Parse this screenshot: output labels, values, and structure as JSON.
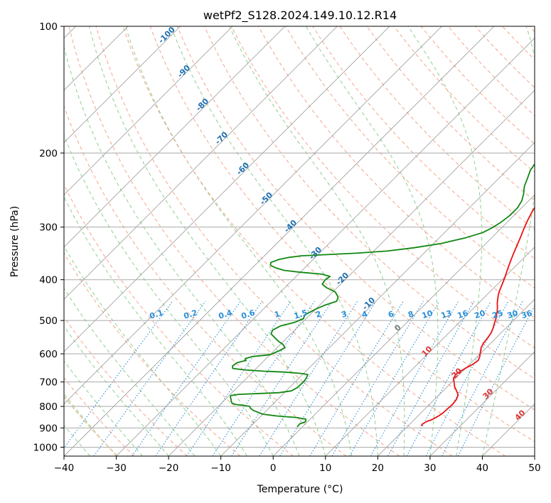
{
  "colors": {
    "temperature": "#ee1111",
    "dewpoint": "#118811",
    "isotherm": "#999999",
    "isobar": "#aaaaaa",
    "dry_adiabat": "#f4a58a",
    "moist_adiabat": "#8fcf8f",
    "mixing_ratio": "#2a8fd8",
    "dry_label": "#1f6fb0",
    "hot_label": "#dd3333",
    "zero_label": "#808080",
    "curve_accent": "#e8cfa8"
  },
  "chart_data": {
    "type": "line",
    "title": "wetPf2_S128.2024.149.10.12.R14",
    "xlabel": "Temperature (°C)",
    "ylabel": "Pressure (hPa)",
    "xlim": [
      -40,
      50
    ],
    "ylim": [
      1050,
      100
    ],
    "y_scale": "log",
    "x_ticks": [
      "−40",
      "−30",
      "−20",
      "−10",
      "0",
      "10",
      "20",
      "30",
      "40",
      "50"
    ],
    "y_ticks": [
      "100",
      "200",
      "300",
      "400",
      "500",
      "600",
      "700",
      "800",
      "900",
      "1000"
    ],
    "grid": true,
    "series": [
      {
        "role": "temperature",
        "points": [
          [
            22.5,
            890
          ],
          [
            22.4,
            880
          ],
          [
            22.8,
            868
          ],
          [
            23.4,
            860
          ],
          [
            23.9,
            845
          ],
          [
            24.2,
            830
          ],
          [
            24.3,
            810
          ],
          [
            24.4,
            790
          ],
          [
            24.2,
            770
          ],
          [
            23.7,
            752
          ],
          [
            22.6,
            735
          ],
          [
            21.4,
            718
          ],
          [
            20.4,
            700
          ],
          [
            19.6,
            686
          ],
          [
            19.3,
            672
          ],
          [
            19.6,
            660
          ],
          [
            20.0,
            648
          ],
          [
            20.6,
            636
          ],
          [
            20.9,
            622
          ],
          [
            20.5,
            610
          ],
          [
            19.8,
            596
          ],
          [
            19.0,
            580
          ],
          [
            18.6,
            566
          ],
          [
            18.4,
            550
          ],
          [
            18.1,
            535
          ],
          [
            17.5,
            520
          ],
          [
            16.9,
            508
          ],
          [
            16.3,
            495
          ],
          [
            15.7,
            485
          ],
          [
            15.1,
            475
          ],
          [
            14.4,
            465
          ],
          [
            13.6,
            455
          ],
          [
            12.9,
            445
          ],
          [
            12.3,
            436
          ],
          [
            11.8,
            428
          ],
          [
            11.4,
            420
          ],
          [
            10.9,
            410
          ],
          [
            10.1,
            395
          ],
          [
            9.2,
            380
          ],
          [
            8.3,
            365
          ],
          [
            7.4,
            350
          ],
          [
            6.5,
            335
          ],
          [
            5.6,
            320
          ],
          [
            4.6,
            305
          ],
          [
            3.6,
            290
          ],
          [
            2.7,
            275
          ],
          [
            2.0,
            260
          ],
          [
            1.5,
            245
          ],
          [
            1.1,
            230
          ],
          [
            0.8,
            215
          ],
          [
            0.6,
            200
          ],
          [
            0.8,
            190
          ],
          [
            1.3,
            180
          ],
          [
            2.0,
            170
          ],
          [
            2.7,
            160
          ],
          [
            3.4,
            153
          ],
          [
            4.3,
            147
          ],
          [
            5.7,
            141
          ],
          [
            7.0,
            136
          ],
          [
            8.6,
            130
          ],
          [
            9.8,
            124
          ],
          [
            10.7,
            118
          ],
          [
            11.6,
            112
          ],
          [
            12.7,
            106
          ],
          [
            14.6,
            100
          ]
        ]
      },
      {
        "role": "dewpoint",
        "points": [
          [
            -1.0,
            895
          ],
          [
            -1.1,
            880
          ],
          [
            -0.4,
            870
          ],
          [
            -0.8,
            858
          ],
          [
            -3.0,
            850
          ],
          [
            -7.0,
            843
          ],
          [
            -10.0,
            835
          ],
          [
            -12.5,
            818
          ],
          [
            -13.5,
            808
          ],
          [
            -14.0,
            800
          ],
          [
            -15.5,
            795
          ],
          [
            -17.0,
            792
          ],
          [
            -18.0,
            786
          ],
          [
            -18.5,
            778
          ],
          [
            -19.0,
            768
          ],
          [
            -19.5,
            760
          ],
          [
            -19.7,
            754
          ],
          [
            -18.5,
            749
          ],
          [
            -14.0,
            745
          ],
          [
            -11.0,
            742
          ],
          [
            -9.0,
            735
          ],
          [
            -8.5,
            722
          ],
          [
            -8.4,
            700
          ],
          [
            -8.6,
            685
          ],
          [
            -9.0,
            672
          ],
          [
            -10.5,
            668
          ],
          [
            -14.0,
            663
          ],
          [
            -18.0,
            660
          ],
          [
            -22.0,
            655
          ],
          [
            -24.5,
            650
          ],
          [
            -25.0,
            642
          ],
          [
            -24.8,
            630
          ],
          [
            -23.5,
            622
          ],
          [
            -24.0,
            616
          ],
          [
            -23.0,
            609
          ],
          [
            -20.0,
            603
          ],
          [
            -19.0,
            590
          ],
          [
            -18.5,
            580
          ],
          [
            -19.5,
            570
          ],
          [
            -21.0,
            560
          ],
          [
            -22.5,
            548
          ],
          [
            -23.8,
            538
          ],
          [
            -24.2,
            527
          ],
          [
            -23.5,
            515
          ],
          [
            -21.5,
            505
          ],
          [
            -20.5,
            495
          ],
          [
            -21.0,
            485
          ],
          [
            -20.0,
            470
          ],
          [
            -19.0,
            460
          ],
          [
            -17.5,
            450
          ],
          [
            -18.0,
            440
          ],
          [
            -19.5,
            428
          ],
          [
            -22.0,
            418
          ],
          [
            -23.5,
            410
          ],
          [
            -23.8,
            400
          ],
          [
            -23.5,
            393
          ],
          [
            -25.5,
            388
          ],
          [
            -30.0,
            384
          ],
          [
            -33.5,
            380
          ],
          [
            -35.5,
            375
          ],
          [
            -37.0,
            370
          ],
          [
            -37.5,
            364
          ],
          [
            -36.5,
            358
          ],
          [
            -35.0,
            354
          ],
          [
            -33.0,
            351
          ],
          [
            -29.0,
            349
          ],
          [
            -23.0,
            346
          ],
          [
            -17.5,
            342
          ],
          [
            -13.0,
            336
          ],
          [
            -8.5,
            328
          ],
          [
            -5.0,
            318
          ],
          [
            -2.7,
            309
          ],
          [
            -1.8,
            301
          ],
          [
            -1.2,
            292
          ],
          [
            -0.8,
            282
          ],
          [
            -0.8,
            270
          ],
          [
            -1.3,
            260
          ],
          [
            -2.3,
            250
          ],
          [
            -3.6,
            240
          ],
          [
            -4.5,
            230
          ],
          [
            -5.5,
            220
          ],
          [
            -6.0,
            210
          ],
          [
            -6.6,
            200
          ],
          [
            -6.9,
            190
          ],
          [
            -6.7,
            180
          ],
          [
            -5.6,
            170
          ],
          [
            -5.0,
            162
          ],
          [
            -5.7,
            155
          ],
          [
            -7.4,
            150
          ],
          [
            -7.9,
            144
          ],
          [
            -7.1,
            138
          ],
          [
            -5.8,
            131
          ],
          [
            -4.8,
            124
          ],
          [
            -3.6,
            117
          ],
          [
            -2.6,
            109
          ],
          [
            -1.6,
            100
          ]
        ]
      }
    ],
    "isotherm_values": [
      -100,
      -90,
      -80,
      -70,
      -60,
      -50,
      -40,
      -30,
      -20,
      -10,
      0,
      10,
      20,
      30,
      40
    ],
    "isotherm_labels": [
      "-100",
      "-90",
      "-80",
      "-70",
      "-60",
      "-50",
      "-40",
      "-30",
      "-20",
      "-10",
      "0",
      "10",
      "20",
      "30",
      "40"
    ],
    "mixing_ratio_values": [
      0.1,
      0.2,
      0.4,
      0.6,
      1,
      1.5,
      2,
      3,
      4,
      6,
      8,
      10,
      13,
      16,
      20,
      25,
      30,
      36
    ],
    "mixing_ratio_labels": [
      "0.1",
      "0.2",
      "0.4",
      "0.6",
      "1",
      "1.5",
      "2",
      "3",
      "4",
      "6",
      "8",
      "10",
      "13",
      "16",
      "20",
      "25",
      "30",
      "36"
    ]
  }
}
